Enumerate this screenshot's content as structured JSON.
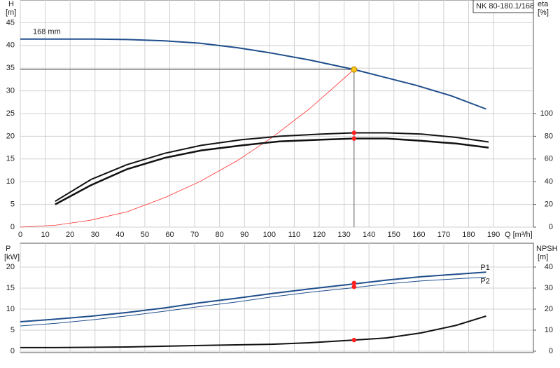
{
  "chart_data": [
    {
      "type": "line",
      "title": "NK 80-180.1/168",
      "y_label": "H",
      "y_unit": "[m]",
      "y2_label": "eta",
      "y2_unit": "[%]",
      "x_label": "Q [m³/h]",
      "xlim": [
        0,
        206
      ],
      "xticks": [
        0,
        10,
        20,
        30,
        40,
        50,
        60,
        70,
        80,
        90,
        100,
        110,
        120,
        130,
        140,
        150,
        160,
        170,
        180,
        190
      ],
      "ylim": [
        0,
        50
      ],
      "yticks": [
        0,
        5,
        10,
        15,
        20,
        25,
        30,
        35,
        40,
        45
      ],
      "y2lim": [
        0,
        200
      ],
      "y2ticks": [
        0,
        20,
        40,
        60,
        80,
        100
      ],
      "grid": true,
      "series": [
        {
          "name": "168 mm",
          "color": "#1f4e8c",
          "line_width": 2,
          "x": [
            0,
            14,
            30,
            43,
            58,
            72,
            87,
            101,
            116,
            134,
            144,
            159,
            173,
            187
          ],
          "values": [
            41.4,
            41.4,
            41.4,
            41.3,
            41.0,
            40.5,
            39.5,
            38.3,
            36.8,
            34.7,
            33.3,
            31.2,
            28.9,
            26.0
          ]
        },
        {
          "color": "#ff2a2a",
          "line_width": 0.8,
          "x": [
            0,
            14,
            28,
            43,
            58,
            72,
            87,
            101,
            116,
            134
          ],
          "values": [
            0,
            0.4,
            1.5,
            3.4,
            6.5,
            10,
            14.6,
            19.7,
            26,
            34.7
          ]
        },
        {
          "color": "#111111",
          "line_width": 2,
          "axis": "y2",
          "x": [
            14,
            28.4,
            42.8,
            58,
            72.6,
            89,
            104,
            121,
            134,
            147,
            161,
            175,
            188
          ],
          "values": [
            22.7,
            42,
            55,
            65,
            72,
            77,
            80,
            82,
            83,
            83,
            82,
            79,
            75
          ]
        },
        {
          "color": "#111111",
          "line_width": 2.5,
          "axis": "y2",
          "x": [
            14,
            28.4,
            42.8,
            58,
            72.6,
            89,
            104,
            121,
            134,
            147,
            161,
            175,
            188
          ],
          "values": [
            20,
            37,
            51,
            61,
            67.5,
            72,
            75.5,
            77,
            78,
            78,
            76,
            73.6,
            70
          ]
        }
      ],
      "markers": [
        {
          "x": 134,
          "y": 34.7,
          "color": "#f5c518"
        },
        {
          "x": 134,
          "y": 83,
          "axis": "y2",
          "color": "#ff2020"
        },
        {
          "x": 134,
          "y": 78,
          "axis": "y2",
          "color": "#ff2020"
        }
      ],
      "duty_point": {
        "x": 134,
        "y": 34.7
      }
    },
    {
      "type": "line",
      "y_label": "P",
      "y_unit": "[kW]",
      "y2_label": "NPSH",
      "y2_unit": "[m]",
      "xlim": [
        0,
        206
      ],
      "ylim": [
        0,
        25
      ],
      "yticks": [
        0,
        5,
        10,
        15,
        20
      ],
      "y2lim": [
        0,
        50
      ],
      "y2ticks": [
        0,
        10,
        20,
        30,
        40
      ],
      "grid": true,
      "series": [
        {
          "name": "P1",
          "color": "#1f4e8c",
          "line_width": 2,
          "x": [
            0,
            14,
            28,
            43,
            58,
            72,
            87,
            101,
            116,
            134,
            147,
            161,
            175,
            187
          ],
          "values": [
            7.0,
            7.6,
            8.3,
            9.2,
            10.3,
            11.5,
            12.6,
            13.7,
            14.8,
            16.0,
            16.9,
            17.7,
            18.3,
            18.8
          ]
        },
        {
          "name": "P2",
          "color": "#1f4e8c",
          "line_width": 1,
          "x": [
            0,
            14,
            28,
            43,
            58,
            72,
            87,
            101,
            116,
            134,
            147,
            161,
            175,
            187
          ],
          "values": [
            6.0,
            6.6,
            7.4,
            8.4,
            9.5,
            10.6,
            11.7,
            12.9,
            14.0,
            15.1,
            16.0,
            16.7,
            17.2,
            17.6
          ]
        },
        {
          "color": "#111111",
          "line_width": 2,
          "axis": "y2",
          "x": [
            0,
            14,
            43,
            72,
            101,
            116,
            134,
            147,
            161,
            175,
            187
          ],
          "values": [
            1.7,
            1.7,
            2,
            2.7,
            3.3,
            4,
            5.3,
            6.3,
            8.7,
            12.3,
            16.7
          ]
        }
      ],
      "markers": [
        {
          "x": 134,
          "y": 16.2,
          "color": "#ff2020"
        },
        {
          "x": 134,
          "y": 15.3,
          "color": "#ff2020"
        },
        {
          "x": 134,
          "y": 5.3,
          "axis": "y2",
          "color": "#ff2020"
        }
      ]
    }
  ]
}
